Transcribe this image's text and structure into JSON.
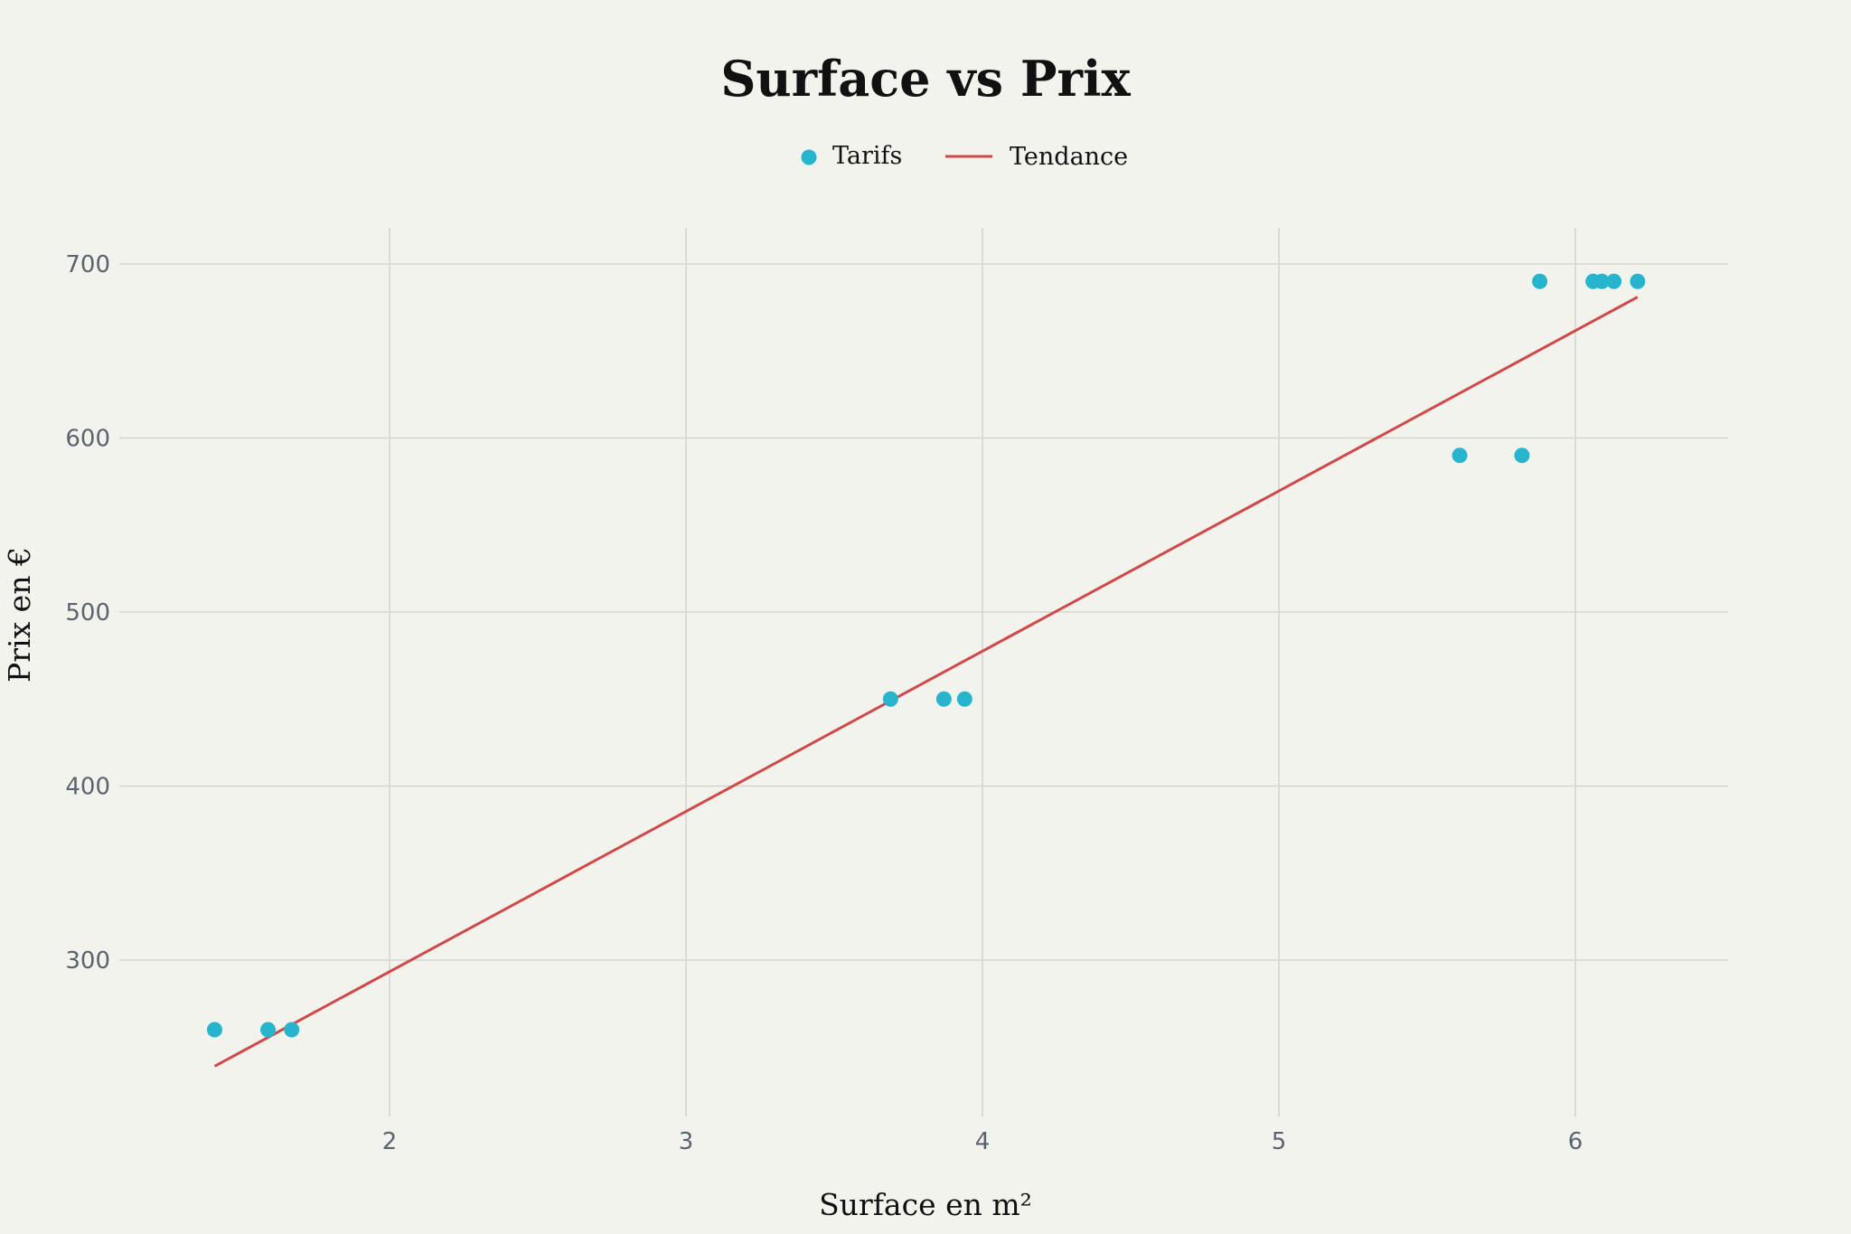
{
  "chart_data": {
    "type": "scatter",
    "title": "Surface vs Prix",
    "xlabel": "Surface en m²",
    "ylabel": "Prix en €",
    "xlim": [
      1.0,
      6.5
    ],
    "ylim": [
      230,
      720
    ],
    "xticks": [
      2,
      3,
      4,
      5,
      6
    ],
    "yticks": [
      300,
      400,
      500,
      600,
      700
    ],
    "grid": true,
    "legend_position": "top-center",
    "series": [
      {
        "name": "Tarifs",
        "kind": "scatter",
        "color": "#26b5cd",
        "points": [
          {
            "x": 1.41,
            "y": 260
          },
          {
            "x": 1.59,
            "y": 260
          },
          {
            "x": 1.67,
            "y": 260
          },
          {
            "x": 3.69,
            "y": 450
          },
          {
            "x": 3.87,
            "y": 450
          },
          {
            "x": 3.94,
            "y": 450
          },
          {
            "x": 5.61,
            "y": 590
          },
          {
            "x": 5.82,
            "y": 590
          },
          {
            "x": 5.88,
            "y": 690
          },
          {
            "x": 6.06,
            "y": 690
          },
          {
            "x": 6.09,
            "y": 690
          },
          {
            "x": 6.13,
            "y": 690
          },
          {
            "x": 6.21,
            "y": 690
          }
        ]
      },
      {
        "name": "Tendance",
        "kind": "line",
        "color": "#d04848",
        "points": [
          {
            "x": 1.41,
            "y": 239
          },
          {
            "x": 6.21,
            "y": 681
          }
        ]
      }
    ]
  },
  "colors": {
    "background": "#f3f3ee",
    "grid": "#d4d4d0",
    "tick_text": "#5a6470",
    "text": "#111111"
  }
}
